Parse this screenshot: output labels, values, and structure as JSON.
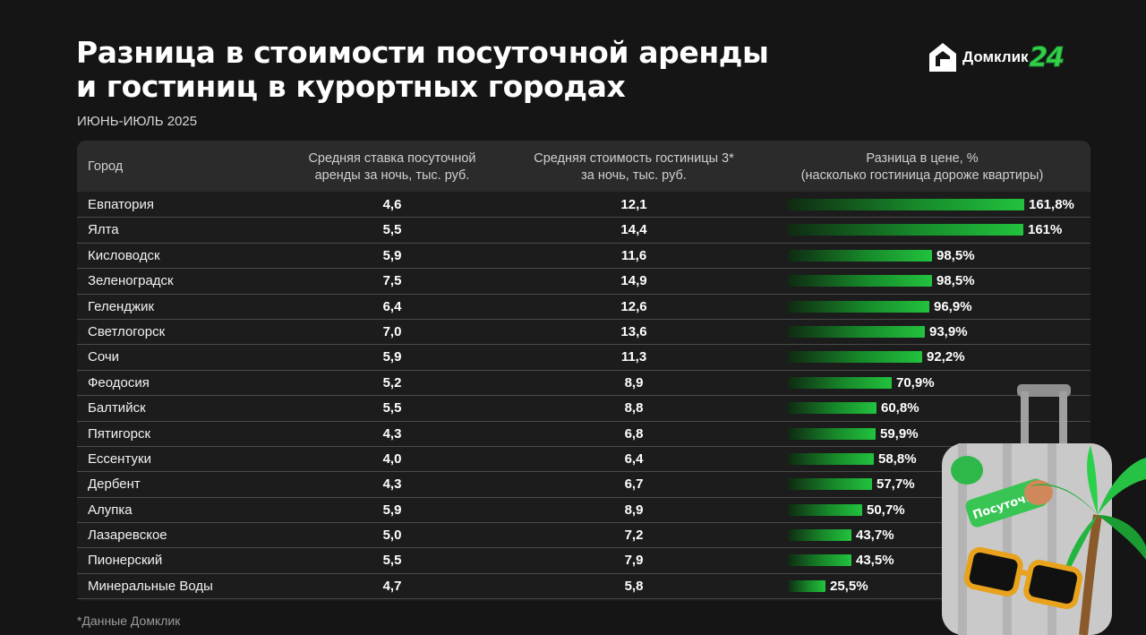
{
  "header": {
    "title_line1": "Разница в стоимости посуточной аренды",
    "title_line2": "и гостиниц в курортных городах",
    "subtitle": "ИЮНЬ-ИЮЛЬ 2025"
  },
  "brand": {
    "name": "Домклик",
    "badge": "24",
    "accent": "#33d14a"
  },
  "table": {
    "col_city": "Город",
    "col_rent_line1": "Средняя ставка посуточной",
    "col_rent_line2": "аренды за ночь, тыс. руб.",
    "col_hotel_line1": "Средняя стоимость гостиницы 3*",
    "col_hotel_line2": "за ночь, тыс. руб.",
    "col_diff_line1": "Разница в цене, %",
    "col_diff_line2": "(насколько гостиница дороже квартиры)"
  },
  "chart_data": {
    "type": "table",
    "title": "Разница в стоимости посуточной аренды и гостиниц в курортных городах",
    "bar_max": 161.8,
    "rows": [
      {
        "city": "Евпатория",
        "rent": "4,6",
        "hotel": "12,1",
        "diff": 161.8,
        "diff_label": "161,8%"
      },
      {
        "city": "Ялта",
        "rent": "5,5",
        "hotel": "14,4",
        "diff": 161.0,
        "diff_label": "161%"
      },
      {
        "city": "Кисловодск",
        "rent": "5,9",
        "hotel": "11,6",
        "diff": 98.5,
        "diff_label": "98,5%"
      },
      {
        "city": "Зеленоградск",
        "rent": "7,5",
        "hotel": "14,9",
        "diff": 98.5,
        "diff_label": "98,5%"
      },
      {
        "city": "Геленджик",
        "rent": "6,4",
        "hotel": "12,6",
        "diff": 96.9,
        "diff_label": "96,9%"
      },
      {
        "city": "Светлогорск",
        "rent": "7,0",
        "hotel": "13,6",
        "diff": 93.9,
        "diff_label": "93,9%"
      },
      {
        "city": "Сочи",
        "rent": "5,9",
        "hotel": "11,3",
        "diff": 92.2,
        "diff_label": "92,2%"
      },
      {
        "city": "Феодосия",
        "rent": "5,2",
        "hotel": "8,9",
        "diff": 70.9,
        "diff_label": "70,9%"
      },
      {
        "city": "Балтийск",
        "rent": "5,5",
        "hotel": "8,8",
        "diff": 60.8,
        "diff_label": "60,8%"
      },
      {
        "city": "Пятигорск",
        "rent": "4,3",
        "hotel": "6,8",
        "diff": 59.9,
        "diff_label": "59,9%"
      },
      {
        "city": "Ессентуки",
        "rent": "4,0",
        "hotel": "6,4",
        "diff": 58.8,
        "diff_label": "58,8%"
      },
      {
        "city": "Дербент",
        "rent": "4,3",
        "hotel": "6,7",
        "diff": 57.7,
        "diff_label": "57,7%"
      },
      {
        "city": "Алупка",
        "rent": "5,9",
        "hotel": "8,9",
        "diff": 50.7,
        "diff_label": "50,7%"
      },
      {
        "city": "Лазаревское",
        "rent": "5,0",
        "hotel": "7,2",
        "diff": 43.7,
        "diff_label": "43,7%"
      },
      {
        "city": "Пионерский",
        "rent": "5,5",
        "hotel": "7,9",
        "diff": 43.5,
        "diff_label": "43,5%"
      },
      {
        "city": "Минеральные Воды",
        "rent": "4,7",
        "hotel": "5,8",
        "diff": 25.5,
        "diff_label": "25,5%"
      }
    ]
  },
  "footnote": "*Данные Домклик",
  "illustration": {
    "icon": "suitcase-with-palm-and-sunglasses-icon",
    "sticker_text": "Посуточно"
  }
}
